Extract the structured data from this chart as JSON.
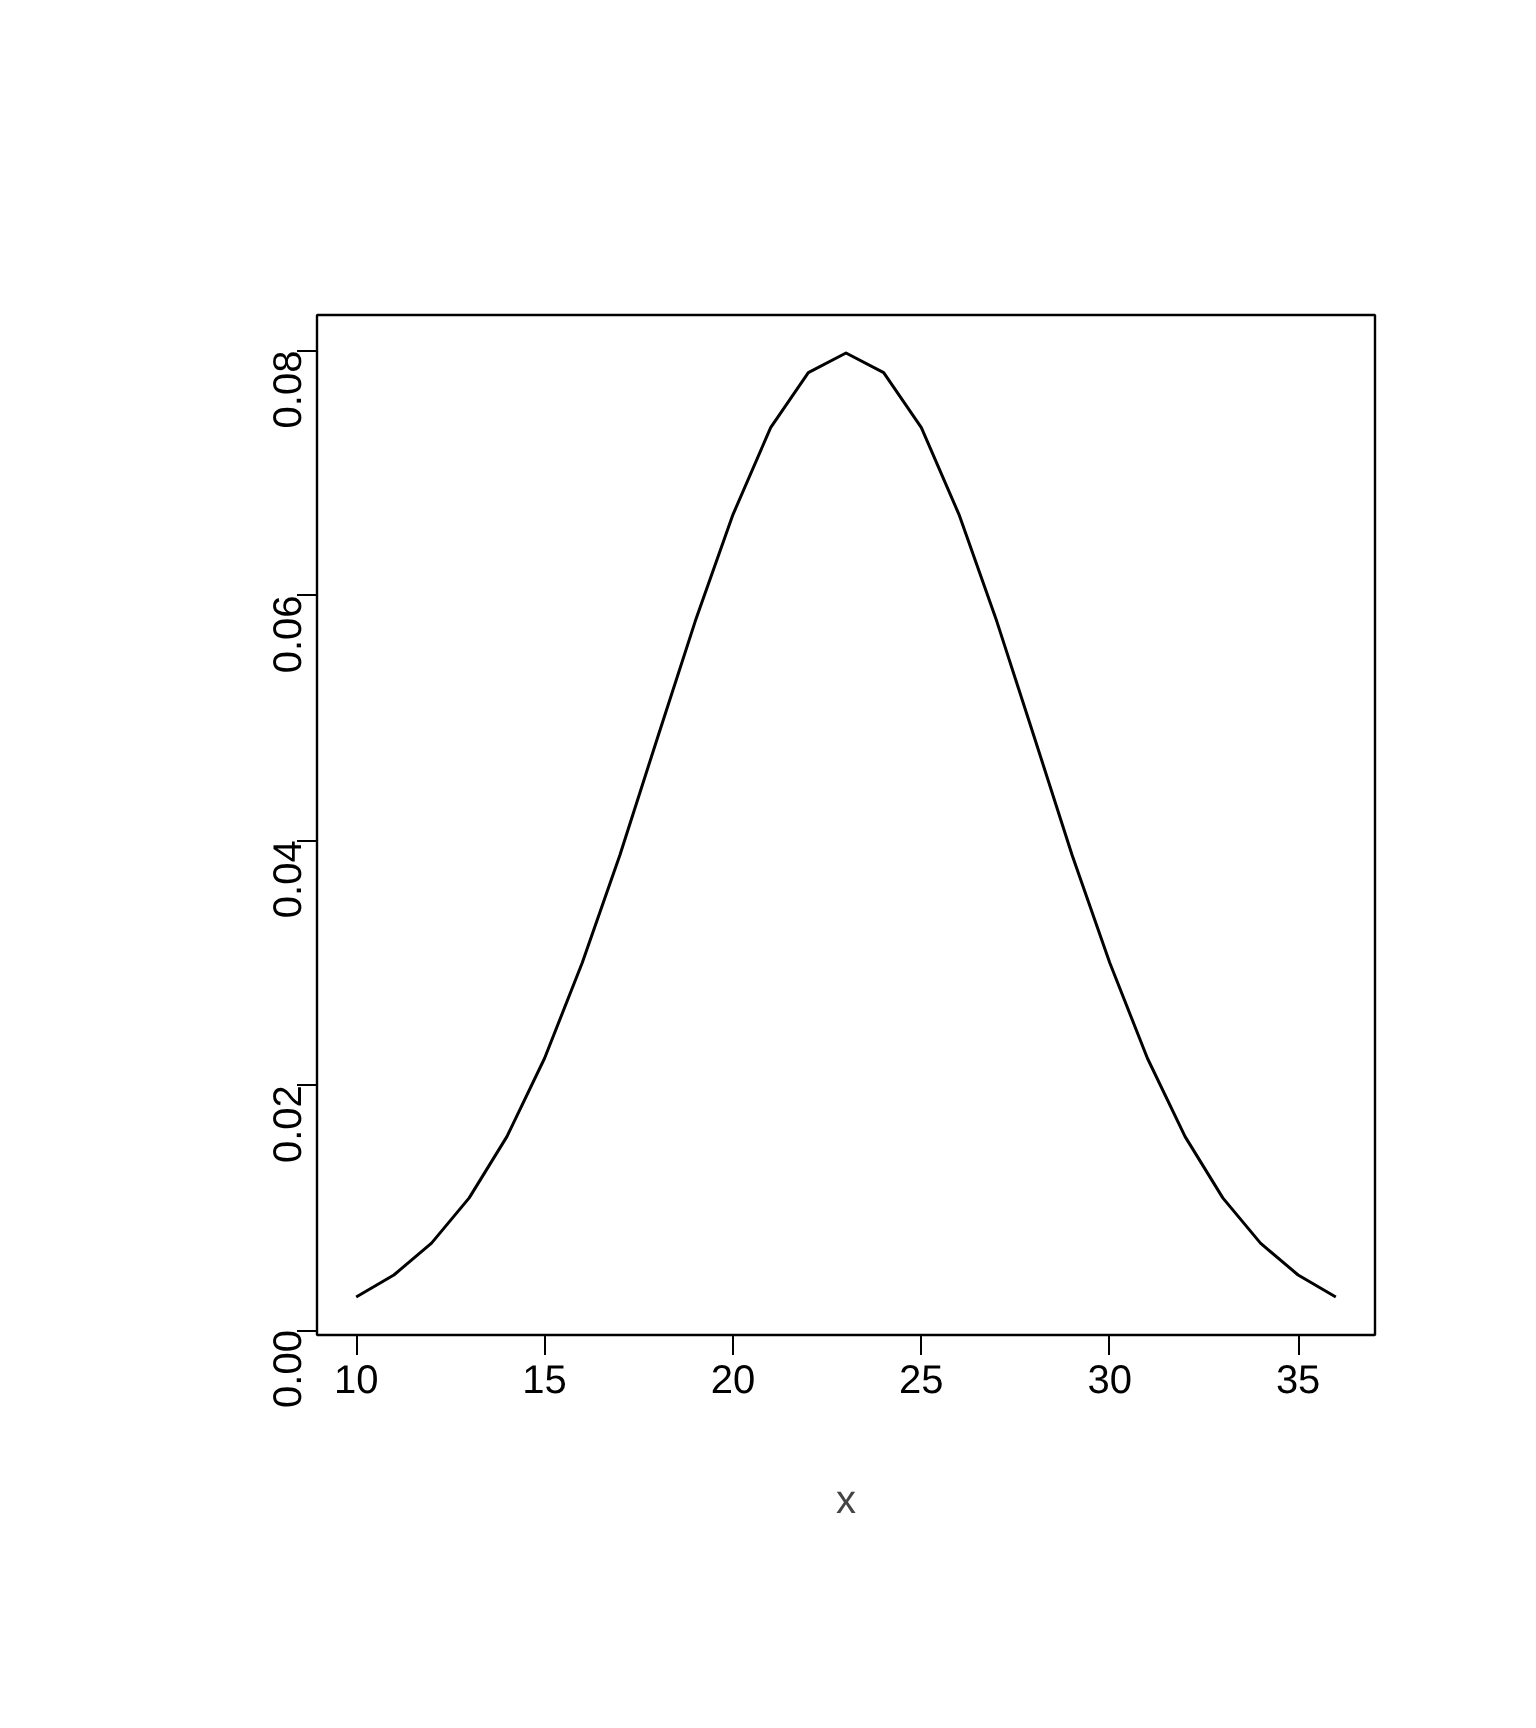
{
  "chart_data": {
    "type": "line",
    "xlabel": "x",
    "x": [
      10,
      11,
      12,
      13,
      14,
      15,
      16,
      17,
      18,
      19,
      20,
      21,
      22,
      23,
      24,
      25,
      26,
      27,
      28,
      29,
      30,
      31,
      32,
      33,
      34,
      35,
      36
    ],
    "series": [
      {
        "color": "#000000",
        "values": [
          0.0027,
          0.0045,
          0.0071,
          0.0108,
          0.0158,
          0.0222,
          0.03,
          0.0388,
          0.0484,
          0.0579,
          0.0666,
          0.0737,
          0.0782,
          0.0798,
          0.0782,
          0.0737,
          0.0666,
          0.0579,
          0.0484,
          0.0388,
          0.03,
          0.0222,
          0.0158,
          0.0108,
          0.0071,
          0.0045,
          0.0027
        ]
      }
    ],
    "xlim": [
      8.96,
      37.04
    ],
    "ylim": [
      -0.0004,
      0.0829
    ],
    "xticks": [
      10,
      15,
      20,
      25,
      30,
      35
    ],
    "yticks": [
      {
        "value": 0,
        "label": "0.00"
      },
      {
        "value": 0.02,
        "label": "0.02"
      },
      {
        "value": 0.04,
        "label": "0.04"
      },
      {
        "value": 0.06,
        "label": "0.06"
      },
      {
        "value": 0.08,
        "label": "0.08"
      }
    ],
    "grid": false,
    "marker": "none",
    "line_style": "solid"
  }
}
